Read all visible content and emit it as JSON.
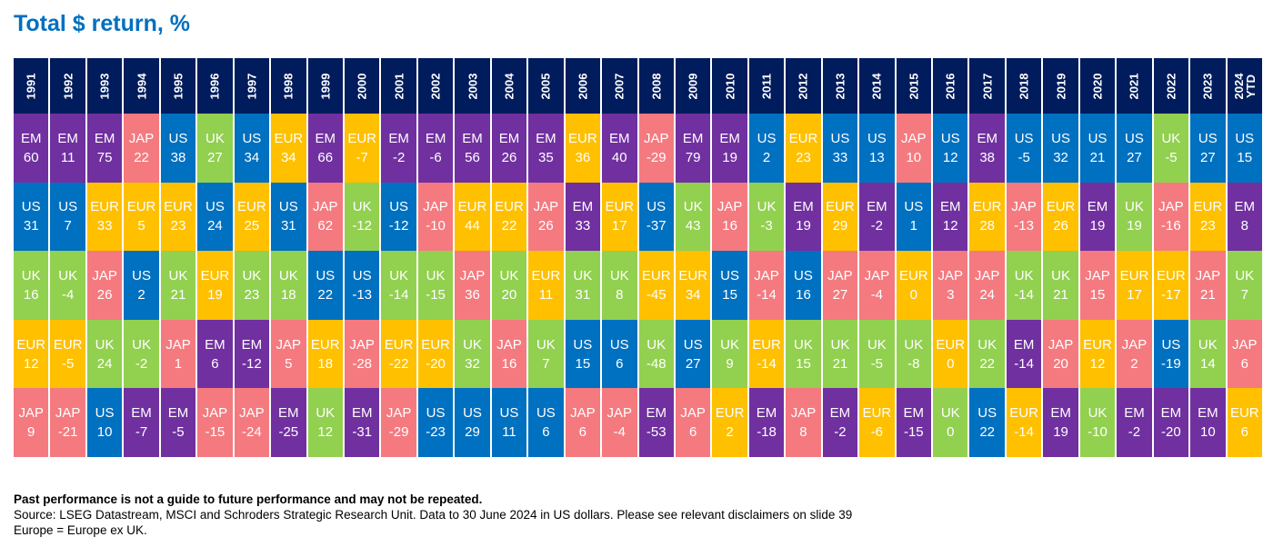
{
  "title": "Total $ return, %",
  "colors": {
    "EM": "#7030a0",
    "US": "#0070c0",
    "EUR": "#ffc000",
    "JAP": "#f47a7f",
    "UK": "#92d050",
    "header": "#001c5c"
  },
  "chart_data": {
    "type": "table",
    "columns": [
      "1991",
      "1992",
      "1993",
      "1994",
      "1995",
      "1996",
      "1997",
      "1998",
      "1999",
      "2000",
      "2001",
      "2002",
      "2003",
      "2004",
      "2005",
      "2006",
      "2007",
      "2008",
      "2009",
      "2010",
      "2011",
      "2012",
      "2013",
      "2014",
      "2015",
      "2016",
      "2017",
      "2018",
      "2019",
      "2020",
      "2021",
      "2022",
      "2023",
      "2024 YTD"
    ],
    "rows": [
      [
        [
          "EM",
          "60"
        ],
        [
          "US",
          "31"
        ],
        [
          "UK",
          "16"
        ],
        [
          "EUR",
          "12"
        ],
        [
          "JAP",
          "9"
        ]
      ],
      [
        [
          "EM",
          "11"
        ],
        [
          "US",
          "7"
        ],
        [
          "UK",
          "-4"
        ],
        [
          "EUR",
          "-5"
        ],
        [
          "JAP",
          "-21"
        ]
      ],
      [
        [
          "EM",
          "75"
        ],
        [
          "EUR",
          "33"
        ],
        [
          "JAP",
          "26"
        ],
        [
          "UK",
          "24"
        ],
        [
          "US",
          "10"
        ]
      ],
      [
        [
          "JAP",
          "22"
        ],
        [
          "EUR",
          "5"
        ],
        [
          "US",
          "2"
        ],
        [
          "UK",
          "-2"
        ],
        [
          "EM",
          "-7"
        ]
      ],
      [
        [
          "US",
          "38"
        ],
        [
          "EUR",
          "23"
        ],
        [
          "UK",
          "21"
        ],
        [
          "JAP",
          "1"
        ],
        [
          "EM",
          "-5"
        ]
      ],
      [
        [
          "UK",
          "27"
        ],
        [
          "US",
          "24"
        ],
        [
          "EUR",
          "19"
        ],
        [
          "EM",
          "6"
        ],
        [
          "JAP",
          "-15"
        ]
      ],
      [
        [
          "US",
          "34"
        ],
        [
          "EUR",
          "25"
        ],
        [
          "UK",
          "23"
        ],
        [
          "EM",
          "-12"
        ],
        [
          "JAP",
          "-24"
        ]
      ],
      [
        [
          "EUR",
          "34"
        ],
        [
          "US",
          "31"
        ],
        [
          "UK",
          "18"
        ],
        [
          "JAP",
          "5"
        ],
        [
          "EM",
          "-25"
        ]
      ],
      [
        [
          "EM",
          "66"
        ],
        [
          "JAP",
          "62"
        ],
        [
          "US",
          "22"
        ],
        [
          "EUR",
          "18"
        ],
        [
          "UK",
          "12"
        ]
      ],
      [
        [
          "EUR",
          "-7"
        ],
        [
          "UK",
          "-12"
        ],
        [
          "US",
          "-13"
        ],
        [
          "JAP",
          "-28"
        ],
        [
          "EM",
          "-31"
        ]
      ],
      [
        [
          "EM",
          "-2"
        ],
        [
          "US",
          "-12"
        ],
        [
          "UK",
          "-14"
        ],
        [
          "EUR",
          "-22"
        ],
        [
          "JAP",
          "-29"
        ]
      ],
      [
        [
          "EM",
          "-6"
        ],
        [
          "JAP",
          "-10"
        ],
        [
          "UK",
          "-15"
        ],
        [
          "EUR",
          "-20"
        ],
        [
          "US",
          "-23"
        ]
      ],
      [
        [
          "EM",
          "56"
        ],
        [
          "EUR",
          "44"
        ],
        [
          "JAP",
          "36"
        ],
        [
          "UK",
          "32"
        ],
        [
          "US",
          "29"
        ]
      ],
      [
        [
          "EM",
          "26"
        ],
        [
          "EUR",
          "22"
        ],
        [
          "UK",
          "20"
        ],
        [
          "JAP",
          "16"
        ],
        [
          "US",
          "11"
        ]
      ],
      [
        [
          "EM",
          "35"
        ],
        [
          "JAP",
          "26"
        ],
        [
          "EUR",
          "11"
        ],
        [
          "UK",
          "7"
        ],
        [
          "US",
          "6"
        ]
      ],
      [
        [
          "EUR",
          "36"
        ],
        [
          "EM",
          "33"
        ],
        [
          "UK",
          "31"
        ],
        [
          "US",
          "15"
        ],
        [
          "JAP",
          "6"
        ]
      ],
      [
        [
          "EM",
          "40"
        ],
        [
          "EUR",
          "17"
        ],
        [
          "UK",
          "8"
        ],
        [
          "US",
          "6"
        ],
        [
          "JAP",
          "-4"
        ]
      ],
      [
        [
          "JAP",
          "-29"
        ],
        [
          "US",
          "-37"
        ],
        [
          "EUR",
          "-45"
        ],
        [
          "UK",
          "-48"
        ],
        [
          "EM",
          "-53"
        ]
      ],
      [
        [
          "EM",
          "79"
        ],
        [
          "UK",
          "43"
        ],
        [
          "EUR",
          "34"
        ],
        [
          "US",
          "27"
        ],
        [
          "JAP",
          "6"
        ]
      ],
      [
        [
          "EM",
          "19"
        ],
        [
          "JAP",
          "16"
        ],
        [
          "US",
          "15"
        ],
        [
          "UK",
          "9"
        ],
        [
          "EUR",
          "2"
        ]
      ],
      [
        [
          "US",
          "2"
        ],
        [
          "UK",
          "-3"
        ],
        [
          "JAP",
          "-14"
        ],
        [
          "EUR",
          "-14"
        ],
        [
          "EM",
          "-18"
        ]
      ],
      [
        [
          "EUR",
          "23"
        ],
        [
          "EM",
          "19"
        ],
        [
          "US",
          "16"
        ],
        [
          "UK",
          "15"
        ],
        [
          "JAP",
          "8"
        ]
      ],
      [
        [
          "US",
          "33"
        ],
        [
          "EUR",
          "29"
        ],
        [
          "JAP",
          "27"
        ],
        [
          "UK",
          "21"
        ],
        [
          "EM",
          "-2"
        ]
      ],
      [
        [
          "US",
          "13"
        ],
        [
          "EM",
          "-2"
        ],
        [
          "JAP",
          "-4"
        ],
        [
          "UK",
          "-5"
        ],
        [
          "EUR",
          "-6"
        ]
      ],
      [
        [
          "JAP",
          "10"
        ],
        [
          "US",
          "1"
        ],
        [
          "EUR",
          "0"
        ],
        [
          "UK",
          "-8"
        ],
        [
          "EM",
          "-15"
        ]
      ],
      [
        [
          "US",
          "12"
        ],
        [
          "EM",
          "12"
        ],
        [
          "JAP",
          "3"
        ],
        [
          "EUR",
          "0"
        ],
        [
          "UK",
          "0"
        ]
      ],
      [
        [
          "EM",
          "38"
        ],
        [
          "EUR",
          "28"
        ],
        [
          "JAP",
          "24"
        ],
        [
          "UK",
          "22"
        ],
        [
          "US",
          "22"
        ]
      ],
      [
        [
          "US",
          "-5"
        ],
        [
          "JAP",
          "-13"
        ],
        [
          "UK",
          "-14"
        ],
        [
          "EM",
          "-14"
        ],
        [
          "EUR",
          "-14"
        ]
      ],
      [
        [
          "US",
          "32"
        ],
        [
          "EUR",
          "26"
        ],
        [
          "UK",
          "21"
        ],
        [
          "JAP",
          "20"
        ],
        [
          "EM",
          "19"
        ]
      ],
      [
        [
          "US",
          "21"
        ],
        [
          "EM",
          "19"
        ],
        [
          "JAP",
          "15"
        ],
        [
          "EUR",
          "12"
        ],
        [
          "UK",
          "-10"
        ]
      ],
      [
        [
          "US",
          "27"
        ],
        [
          "UK",
          "19"
        ],
        [
          "EUR",
          "17"
        ],
        [
          "JAP",
          "2"
        ],
        [
          "EM",
          "-2"
        ]
      ],
      [
        [
          "UK",
          "-5"
        ],
        [
          "JAP",
          "-16"
        ],
        [
          "EUR",
          "-17"
        ],
        [
          "US",
          "-19"
        ],
        [
          "EM",
          "-20"
        ]
      ],
      [
        [
          "US",
          "27"
        ],
        [
          "EUR",
          "23"
        ],
        [
          "JAP",
          "21"
        ],
        [
          "UK",
          "14"
        ],
        [
          "EM",
          "10"
        ]
      ],
      [
        [
          "US",
          "15"
        ],
        [
          "EM",
          "8"
        ],
        [
          "UK",
          "7"
        ],
        [
          "JAP",
          "6"
        ],
        [
          "EUR",
          "6"
        ]
      ]
    ]
  },
  "footer": {
    "disclaimer": "Past performance is not a guide to future performance and may not be repeated.",
    "source": "Source: LSEG Datastream, MSCI and Schroders Strategic Research Unit. Data to 30 June 2024 in US dollars. Please see relevant disclaimers on slide 39",
    "note": "Europe = Europe ex UK."
  }
}
